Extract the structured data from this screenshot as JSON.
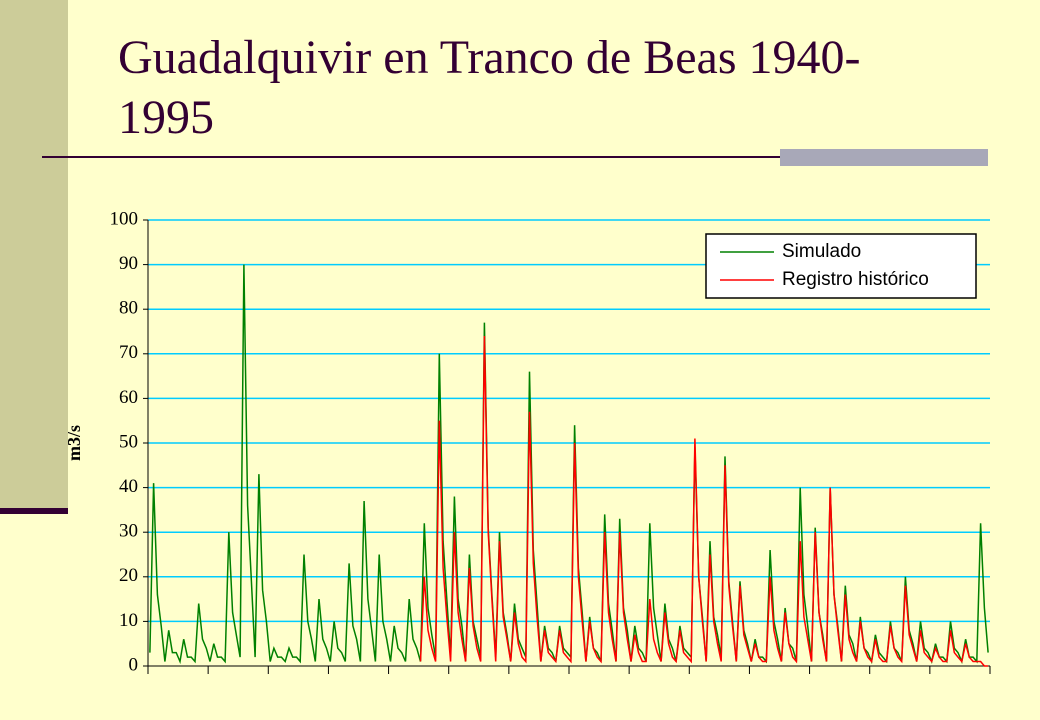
{
  "chart_data": {
    "type": "line",
    "title": "Guadalquivir en Tranco de Beas 1940-1995",
    "y_label": "m3/s",
    "ylim": [
      0,
      100
    ],
    "yticks": [
      0,
      10,
      20,
      30,
      40,
      50,
      60,
      70,
      80,
      90,
      100
    ],
    "xticks": [
      0,
      16,
      32,
      48,
      64,
      80,
      96,
      112,
      128,
      144,
      160,
      176,
      192,
      208,
      224
    ],
    "grid": true,
    "legend": "top-right",
    "series": [
      {
        "name": "Simulado",
        "color": "#008000",
        "values": [
          3,
          41,
          16,
          9,
          1,
          8,
          3,
          3,
          1,
          6,
          2,
          2,
          1,
          14,
          6,
          4,
          1,
          5,
          2,
          2,
          1,
          30,
          12,
          7,
          2,
          90,
          36,
          19,
          2,
          43,
          17,
          10,
          1,
          4,
          2,
          2,
          1,
          4,
          2,
          2,
          1,
          25,
          10,
          6,
          1,
          15,
          6,
          4,
          1,
          10,
          4,
          3,
          1,
          23,
          9,
          6,
          1,
          37,
          15,
          8,
          1,
          25,
          10,
          6,
          1,
          9,
          4,
          3,
          1,
          15,
          6,
          4,
          1,
          32,
          13,
          7,
          2,
          70,
          28,
          15,
          2,
          38,
          15,
          9,
          1,
          25,
          10,
          6,
          2,
          77,
          31,
          16,
          2,
          30,
          12,
          7,
          1,
          14,
          6,
          4,
          2,
          66,
          26,
          14,
          1,
          9,
          4,
          3,
          1,
          9,
          4,
          3,
          2,
          54,
          22,
          12,
          1,
          11,
          4,
          3,
          1,
          34,
          14,
          8,
          1,
          33,
          13,
          8,
          1,
          9,
          4,
          3,
          1,
          32,
          13,
          7,
          1,
          14,
          6,
          4,
          1,
          9,
          4,
          3,
          2,
          49,
          20,
          11,
          1,
          28,
          11,
          7,
          2,
          47,
          19,
          10,
          1,
          19,
          8,
          5,
          1,
          6,
          2,
          2,
          1,
          26,
          10,
          6,
          1,
          13,
          5,
          4,
          1,
          40,
          16,
          9,
          1,
          31,
          12,
          7,
          1,
          40,
          16,
          9,
          1,
          18,
          7,
          5,
          1,
          11,
          4,
          3,
          1,
          7,
          3,
          2,
          1,
          10,
          4,
          3,
          1,
          20,
          8,
          5,
          1,
          10,
          4,
          3,
          1,
          5,
          2,
          2,
          1,
          10,
          4,
          3,
          1,
          6,
          2,
          2,
          1,
          32,
          13,
          3
        ]
      },
      {
        "name": "Registro histórico",
        "color": "#ff0000",
        "values": [
          null,
          null,
          null,
          null,
          null,
          null,
          null,
          null,
          null,
          null,
          null,
          null,
          null,
          null,
          null,
          null,
          null,
          null,
          null,
          null,
          null,
          null,
          null,
          null,
          null,
          null,
          null,
          null,
          null,
          null,
          null,
          null,
          null,
          null,
          null,
          null,
          null,
          null,
          null,
          null,
          null,
          null,
          null,
          null,
          null,
          null,
          null,
          null,
          null,
          null,
          null,
          null,
          null,
          null,
          null,
          null,
          null,
          null,
          null,
          null,
          null,
          null,
          null,
          null,
          null,
          null,
          null,
          null,
          null,
          null,
          null,
          null,
          1,
          20,
          8,
          4,
          1,
          55,
          22,
          11,
          1,
          30,
          12,
          6,
          1,
          22,
          9,
          4,
          1,
          74,
          30,
          15,
          1,
          28,
          11,
          6,
          1,
          12,
          5,
          2,
          1,
          57,
          23,
          11,
          1,
          8,
          3,
          2,
          1,
          8,
          3,
          2,
          1,
          50,
          20,
          10,
          1,
          10,
          4,
          2,
          1,
          30,
          12,
          6,
          1,
          30,
          12,
          6,
          1,
          7,
          3,
          1,
          1,
          15,
          6,
          3,
          1,
          12,
          5,
          2,
          1,
          8,
          3,
          2,
          1,
          51,
          20,
          10,
          1,
          25,
          10,
          5,
          1,
          45,
          18,
          9,
          1,
          18,
          7,
          4,
          1,
          5,
          2,
          1,
          1,
          20,
          8,
          4,
          1,
          12,
          5,
          2,
          1,
          28,
          11,
          6,
          1,
          30,
          12,
          6,
          1,
          40,
          16,
          8,
          1,
          16,
          6,
          3,
          1,
          10,
          4,
          2,
          1,
          6,
          2,
          1,
          1,
          9,
          4,
          2,
          1,
          18,
          7,
          4,
          1,
          8,
          3,
          2,
          1,
          4,
          2,
          1,
          1,
          8,
          3,
          2,
          1,
          5,
          2,
          1,
          1,
          1,
          0,
          0
        ]
      }
    ]
  }
}
